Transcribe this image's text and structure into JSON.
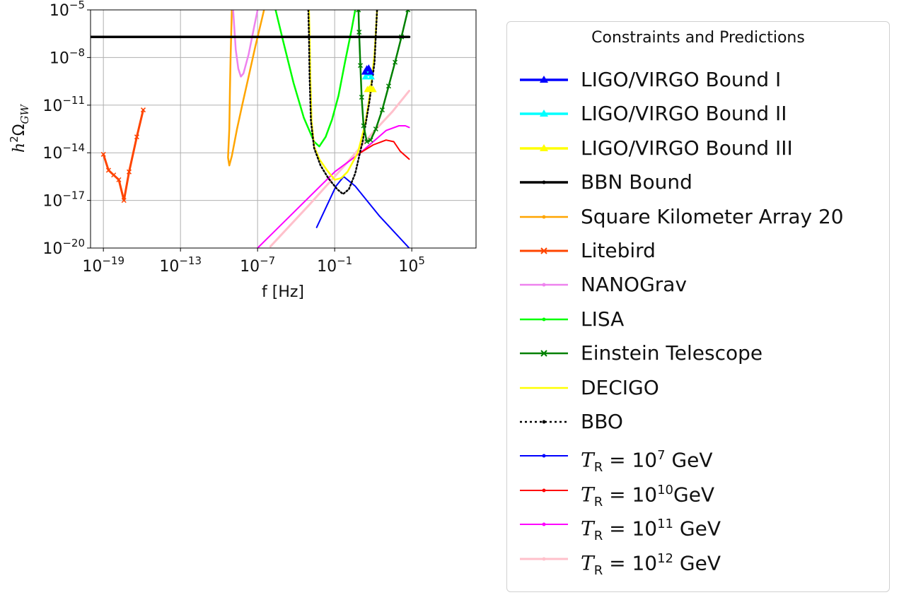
{
  "chart_data": {
    "type": "line",
    "xlabel": "f [Hz]",
    "ylabel": "h²Ω_GW",
    "ylabel_parts": {
      "base": "h",
      "sup": "2",
      "symbol": "Ω",
      "sub": "GW"
    },
    "x_scale": "log",
    "y_scale": "log",
    "xlim_log10": [
      -20,
      10
    ],
    "ylim_log10": [
      -20,
      -5
    ],
    "x_ticks": [
      {
        "base": "10",
        "exp": "−19"
      },
      {
        "base": "10",
        "exp": "−13"
      },
      {
        "base": "10",
        "exp": "−7"
      },
      {
        "base": "10",
        "exp": "−1"
      },
      {
        "base": "10",
        "exp": "5"
      }
    ],
    "x_tick_log10": [
      -19,
      -13,
      -7,
      -1,
      5
    ],
    "y_ticks": [
      {
        "base": "10",
        "exp": "−20"
      },
      {
        "base": "10",
        "exp": "−17"
      },
      {
        "base": "10",
        "exp": "−14"
      },
      {
        "base": "10",
        "exp": "−11"
      },
      {
        "base": "10",
        "exp": "−8"
      },
      {
        "base": "10",
        "exp": "−5"
      }
    ],
    "y_tick_log10": [
      -20,
      -17,
      -14,
      -11,
      -8,
      -5
    ],
    "grid": true,
    "legend": {
      "title": "Constraints and Predictions",
      "placement": "outside-right"
    },
    "series": [
      {
        "key": "ligo1",
        "label": "LIGO/VIRGO Bound I",
        "color": "#0000ff",
        "width": 3.5,
        "marker": "triangle",
        "points_log10": [
          [
            1.35,
            -8.9
          ],
          [
            1.5,
            -8.7
          ],
          [
            1.65,
            -8.65
          ],
          [
            1.8,
            -8.9
          ]
        ]
      },
      {
        "key": "ligo2",
        "label": "LIGO/VIRGO Bound II",
        "color": "#00ffff",
        "width": 3.5,
        "marker": "triangle",
        "points_log10": [
          [
            1.4,
            -9.2
          ],
          [
            1.55,
            -9.0
          ],
          [
            1.7,
            -9.0
          ],
          [
            1.85,
            -9.2
          ]
        ]
      },
      {
        "key": "ligo3",
        "label": "LIGO/VIRGO Bound III",
        "color": "#ffff00",
        "width": 3.5,
        "marker": "triangle",
        "points_log10": [
          [
            1.55,
            -10.0
          ],
          [
            1.7,
            -9.95
          ],
          [
            1.85,
            -9.95
          ],
          [
            2.0,
            -10.0
          ]
        ]
      },
      {
        "key": "bbn",
        "label": "BBN Bound",
        "color": "#000000",
        "width": 3.5,
        "marker": "dot",
        "points_log10": [
          [
            -20,
            -6.7
          ],
          [
            4.8,
            -6.7
          ]
        ]
      },
      {
        "key": "ska",
        "label": "Square Kilometer Array 20",
        "color": "#ffa500",
        "width": 2.5,
        "marker": "dot",
        "points_log10": [
          [
            -9.0,
            -5.0
          ],
          [
            -9.05,
            -6.5
          ],
          [
            -9.1,
            -8.0
          ],
          [
            -9.15,
            -10.0
          ],
          [
            -9.2,
            -12.5
          ],
          [
            -9.3,
            -14.3
          ],
          [
            -9.2,
            -14.8
          ],
          [
            -9.0,
            -14.2
          ],
          [
            -8.6,
            -12.5
          ],
          [
            -8.2,
            -11.0
          ],
          [
            -7.7,
            -9.2
          ],
          [
            -7.2,
            -7.4
          ],
          [
            -6.7,
            -5.7
          ],
          [
            -6.5,
            -5.0
          ]
        ]
      },
      {
        "key": "litebird",
        "label": "Litebird",
        "color": "#ff4500",
        "width": 3,
        "marker": "x",
        "points_log10": [
          [
            -19.0,
            -14.1
          ],
          [
            -18.6,
            -15.1
          ],
          [
            -18.2,
            -15.4
          ],
          [
            -17.8,
            -15.7
          ],
          [
            -17.4,
            -17.0
          ],
          [
            -17.0,
            -15.2
          ],
          [
            -16.4,
            -13.0
          ],
          [
            -15.9,
            -11.3
          ]
        ]
      },
      {
        "key": "nanograv",
        "label": "NANOGrav",
        "color": "#ee82ee",
        "width": 2.5,
        "marker": "dot",
        "points_log10": [
          [
            -8.9,
            -5.0
          ],
          [
            -8.7,
            -7.5
          ],
          [
            -8.5,
            -8.7
          ],
          [
            -8.3,
            -9.2
          ],
          [
            -8.1,
            -9.0
          ],
          [
            -7.7,
            -7.8
          ],
          [
            -7.3,
            -6.2
          ],
          [
            -7.0,
            -5.0
          ]
        ]
      },
      {
        "key": "lisa",
        "label": "LISA",
        "color": "#00ff00",
        "width": 2.5,
        "marker": "dot",
        "points_log10": [
          [
            -5.6,
            -5.0
          ],
          [
            -5.0,
            -7.0
          ],
          [
            -4.2,
            -9.6
          ],
          [
            -3.4,
            -11.8
          ],
          [
            -2.6,
            -13.3
          ],
          [
            -2.2,
            -13.6
          ],
          [
            -1.7,
            -13.0
          ],
          [
            -1.2,
            -11.9
          ],
          [
            -0.7,
            -10.4
          ],
          [
            -0.2,
            -8.3
          ],
          [
            0.3,
            -6.3
          ],
          [
            0.6,
            -5.0
          ]
        ]
      },
      {
        "key": "et",
        "label": "Einstein Telescope",
        "color": "#008000",
        "width": 2.5,
        "marker": "x",
        "points_log10": [
          [
            0.85,
            -5.0
          ],
          [
            0.9,
            -6.4
          ],
          [
            1.0,
            -8.5
          ],
          [
            1.1,
            -10.5
          ],
          [
            1.25,
            -12.3
          ],
          [
            1.5,
            -13.3
          ],
          [
            1.8,
            -13.2
          ],
          [
            2.2,
            -12.5
          ],
          [
            2.7,
            -11.3
          ],
          [
            3.2,
            -9.8
          ],
          [
            3.7,
            -8.3
          ],
          [
            4.2,
            -6.7
          ],
          [
            4.7,
            -5.0
          ]
        ]
      },
      {
        "key": "decigo",
        "label": "DECIGO",
        "color": "#ffff00",
        "width": 2.5,
        "marker": "none",
        "points_log10": [
          [
            -3.0,
            -5.0
          ],
          [
            -2.95,
            -6.6
          ],
          [
            -2.9,
            -9.2
          ],
          [
            -2.8,
            -12.0
          ],
          [
            -2.6,
            -13.6
          ],
          [
            -2.2,
            -14.4
          ],
          [
            -1.6,
            -15.1
          ],
          [
            -1.0,
            -15.7
          ],
          [
            -0.5,
            -15.6
          ],
          [
            0.0,
            -15.2
          ],
          [
            0.8,
            -14.0
          ],
          [
            1.4,
            -12.1
          ],
          [
            1.8,
            -10.0
          ],
          [
            2.1,
            -7.8
          ],
          [
            2.3,
            -5.0
          ]
        ]
      },
      {
        "key": "bbo",
        "label": "BBO",
        "color": "#000000",
        "width": 2.5,
        "marker": "dot",
        "dashed": true,
        "points_log10": [
          [
            -3.05,
            -5.0
          ],
          [
            -3.0,
            -6.6
          ],
          [
            -2.95,
            -9.2
          ],
          [
            -2.85,
            -12.0
          ],
          [
            -2.6,
            -13.7
          ],
          [
            -2.1,
            -14.8
          ],
          [
            -1.5,
            -15.6
          ],
          [
            -0.8,
            -16.3
          ],
          [
            -0.35,
            -16.6
          ],
          [
            0.1,
            -16.3
          ],
          [
            0.6,
            -15.3
          ],
          [
            1.2,
            -13.2
          ],
          [
            1.7,
            -10.8
          ],
          [
            2.1,
            -8.3
          ],
          [
            2.3,
            -5.0
          ]
        ]
      },
      {
        "key": "tr7",
        "label_prefix": "T",
        "label_sub": "R",
        "label_mid": " = 10",
        "label_sup": "7",
        "label_unit": " GeV",
        "color": "#0000ff",
        "width": 2,
        "marker": "dot",
        "points_log10": [
          [
            -2.4,
            -18.7
          ],
          [
            -0.9,
            -16.1
          ],
          [
            -0.3,
            -15.5
          ],
          [
            0.6,
            -16.1
          ],
          [
            2.5,
            -18.0
          ],
          [
            4.8,
            -20.0
          ]
        ]
      },
      {
        "key": "tr10",
        "label_prefix": "T",
        "label_sub": "R",
        "label_mid": " = 10",
        "label_sup": "10",
        "label_unit": "GeV",
        "color": "#ff0000",
        "width": 2,
        "marker": "dot",
        "points_log10": [
          [
            1.0,
            -14.0
          ],
          [
            2.0,
            -13.5
          ],
          [
            3.0,
            -13.2
          ],
          [
            3.6,
            -13.3
          ],
          [
            4.1,
            -13.9
          ],
          [
            4.8,
            -14.4
          ]
        ]
      },
      {
        "key": "tr11",
        "label_prefix": "T",
        "label_sub": "R",
        "label_mid": " = 10",
        "label_sup": "11",
        "label_unit": " GeV",
        "color": "#ff00ff",
        "width": 2,
        "marker": "dot",
        "points_log10": [
          [
            -7.0,
            -20.0
          ],
          [
            -4.0,
            -17.6
          ],
          [
            -1.0,
            -15.2
          ],
          [
            1.0,
            -14.0
          ],
          [
            3.0,
            -12.6
          ],
          [
            4.0,
            -12.3
          ],
          [
            4.5,
            -12.3
          ],
          [
            4.8,
            -12.4
          ]
        ]
      },
      {
        "key": "tr12",
        "label_prefix": "T",
        "label_sub": "R",
        "label_mid": " = 10",
        "label_sup": "12",
        "label_unit": " GeV",
        "color": "#ffc0cb",
        "width": 3,
        "marker": "dot",
        "points_log10": [
          [
            -6.0,
            -19.9
          ],
          [
            -3.0,
            -17.3
          ],
          [
            0.0,
            -14.6
          ],
          [
            2.0,
            -12.7
          ],
          [
            3.5,
            -11.4
          ],
          [
            4.8,
            -10.1
          ]
        ]
      }
    ]
  }
}
